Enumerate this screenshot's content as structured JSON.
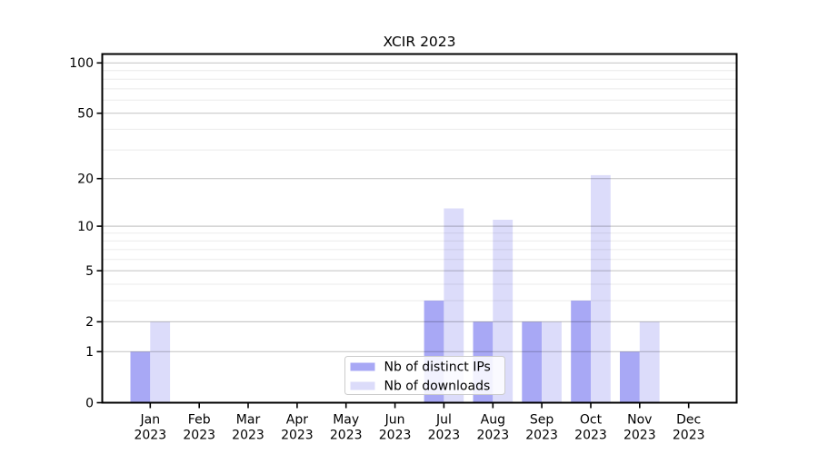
{
  "chart_data": {
    "type": "bar",
    "title": "XCIR 2023",
    "categories": [
      "Jan",
      "Feb",
      "Mar",
      "Apr",
      "May",
      "Jun",
      "Jul",
      "Aug",
      "Sep",
      "Oct",
      "Nov",
      "Dec"
    ],
    "x_year_label": "2023",
    "series": [
      {
        "name": "Nb of distinct IPs",
        "color": "#a8a8f5",
        "values": [
          1,
          0,
          0,
          0,
          0,
          0,
          3,
          2,
          2,
          3,
          1,
          0
        ]
      },
      {
        "name": "Nb of downloads",
        "color": "#dcdcfa",
        "values": [
          2,
          0,
          0,
          0,
          0,
          0,
          13,
          11,
          2,
          21,
          2,
          0
        ]
      }
    ],
    "yscale": "log1p",
    "ylim": [
      0,
      113
    ],
    "yticks": [
      0,
      1,
      2,
      5,
      10,
      20,
      50,
      100
    ],
    "minor_yticks": [
      3,
      4,
      6,
      7,
      8,
      9,
      30,
      40,
      60,
      70,
      80,
      90
    ],
    "grid": true,
    "legend_position": "lower center (inside plot)",
    "colors": {
      "background": "#ffffff",
      "spine": "#000000",
      "text": "#000000",
      "grid_major": "rgba(0,0,0,0.21)",
      "grid_minor": "rgba(0,0,0,0.08)",
      "legend_bg": "rgba(255,255,255,0.85)",
      "legend_border": "#cccccc"
    }
  }
}
